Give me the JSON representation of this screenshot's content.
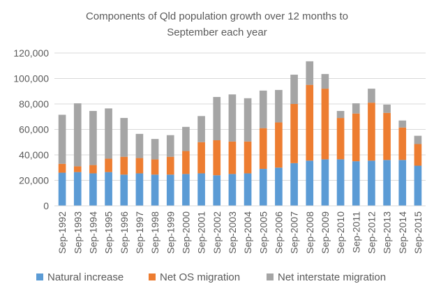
{
  "chart_data": {
    "type": "bar",
    "stacked": true,
    "title": "Components of Qld population growth over 12 months to September each year",
    "title_lines": [
      "Components of Qld population growth over 12 months to",
      "September each year"
    ],
    "xlabel": "",
    "ylabel": "",
    "ylim": [
      0,
      120000
    ],
    "yticks": [
      0,
      20000,
      40000,
      60000,
      80000,
      100000,
      120000
    ],
    "ytick_labels": [
      "0",
      "20,000",
      "40,000",
      "60,000",
      "80,000",
      "100,000",
      "120,000"
    ],
    "grid": true,
    "legend_position": "bottom",
    "categories": [
      "Sep-1992",
      "Sep-1993",
      "Sep-1994",
      "Sep-1995",
      "Sep-1996",
      "Sep-1997",
      "Sep-1998",
      "Sep-1999",
      "Sep-2000",
      "Sep-2001",
      "Sep-2002",
      "Sep-2003",
      "Sep-2004",
      "Sep-2005",
      "Sep-2006",
      "Sep-2007",
      "Sep-2008",
      "Sep-2009",
      "Sep-2010",
      "Sep-2011",
      "Sep-2012",
      "Sep-2013",
      "Sep-2014",
      "Sep-2015"
    ],
    "series": [
      {
        "name": "Natural increase",
        "color": "#5b9bd5",
        "values": [
          26000,
          26500,
          25500,
          26500,
          24500,
          25500,
          24500,
          24500,
          25000,
          25500,
          24000,
          25000,
          25500,
          29000,
          30000,
          33500,
          35500,
          36500,
          36500,
          35000,
          35500,
          36000,
          36000,
          31500
        ]
      },
      {
        "name": "Net OS migration",
        "color": "#ed7d31",
        "values": [
          7000,
          4500,
          6500,
          10500,
          14000,
          12000,
          12000,
          14000,
          18000,
          24500,
          27500,
          25500,
          25000,
          32000,
          35500,
          46500,
          59500,
          55500,
          32500,
          37500,
          45500,
          37000,
          25500,
          17000
        ]
      },
      {
        "name": "Net interstate migration",
        "color": "#a5a5a5",
        "values": [
          38500,
          49500,
          42500,
          39500,
          30500,
          19000,
          16000,
          17000,
          19000,
          20500,
          34000,
          37000,
          34000,
          29500,
          25500,
          23000,
          18500,
          11500,
          5500,
          8000,
          11000,
          6500,
          5500,
          6500
        ]
      }
    ]
  }
}
